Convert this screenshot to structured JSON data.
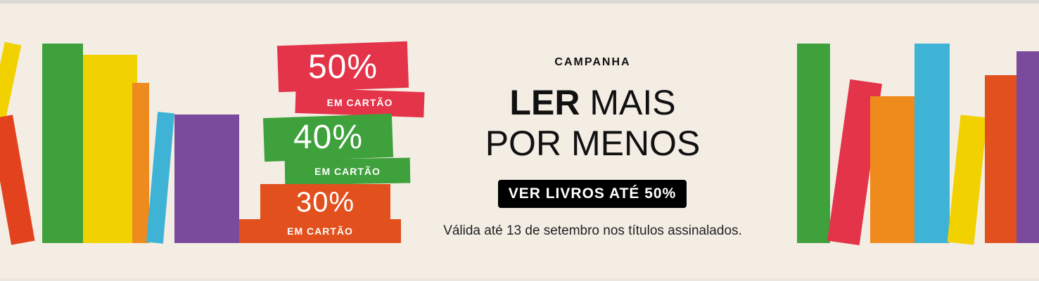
{
  "campaign": {
    "eyebrow": "CAMPANHA",
    "headline_bold": "LER",
    "headline_rest": "MAIS",
    "headline_line2": "POR MENOS",
    "button": "VER LIVROS ATÉ 50%",
    "note": "Válida até 13 de setembro nos títulos assinalados."
  },
  "discounts": [
    {
      "percent": "50%",
      "label": "EM CARTÃO"
    },
    {
      "percent": "40%",
      "label": "EM CARTÃO"
    },
    {
      "percent": "30%",
      "label": "EM CARTÃO"
    }
  ]
}
